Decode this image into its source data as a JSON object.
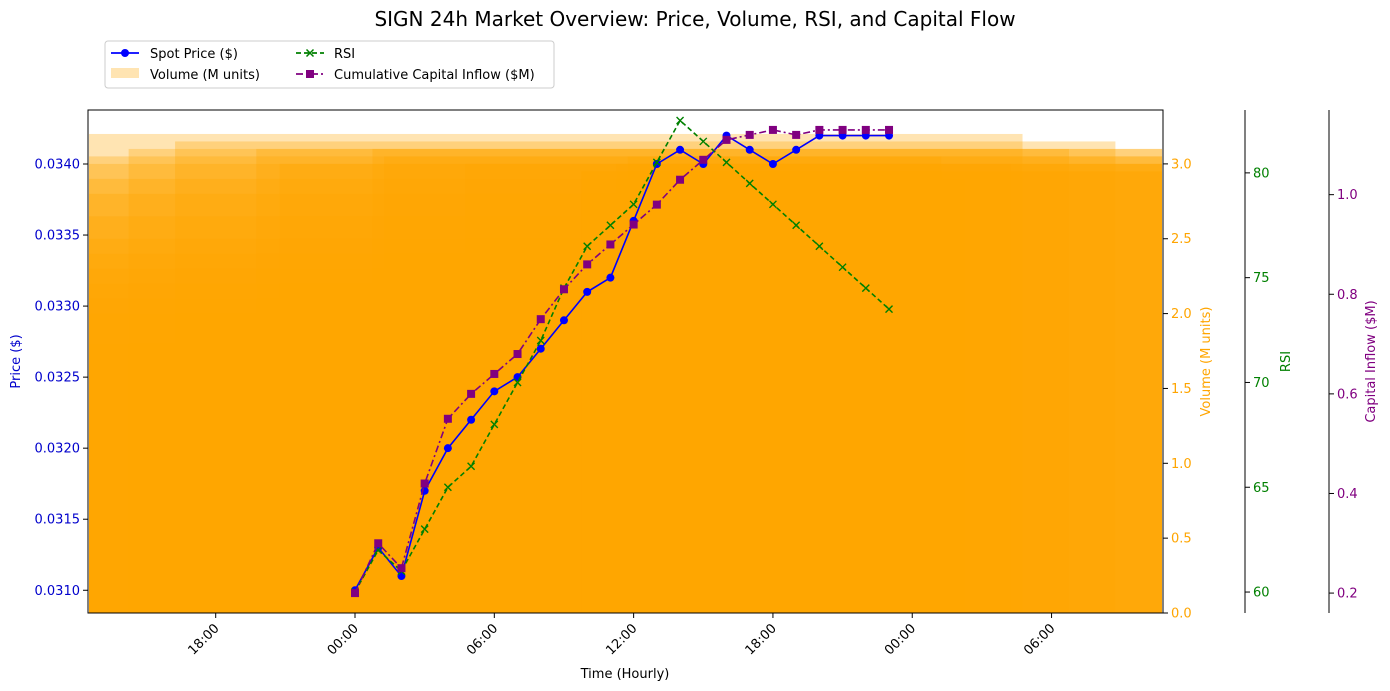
{
  "chart_data": {
    "type": "line",
    "title": "SIGN 24h Market Overview: Price, Volume, RSI, and Capital Flow",
    "xlabel": "Time (Hourly)",
    "x_tick_labels": [
      "18:00",
      "00:00",
      "06:00",
      "12:00",
      "18:00",
      "00:00",
      "06:00"
    ],
    "x_tick_hours": [
      -6,
      0,
      6,
      12,
      18,
      24,
      30
    ],
    "x_range_hours": [
      -11.5,
      34.8
    ],
    "hours": [
      0,
      1,
      2,
      3,
      4,
      5,
      6,
      7,
      8,
      9,
      10,
      11,
      12,
      13,
      14,
      15,
      16,
      17,
      18,
      19,
      20,
      21,
      22,
      23
    ],
    "axes": {
      "price": {
        "label": "Price ($)",
        "color": "#0000cc",
        "ylim": [
          0.03084,
          0.03438
        ],
        "ticks": [
          "0.0310",
          "0.0315",
          "0.0320",
          "0.0325",
          "0.0330",
          "0.0335",
          "0.0340"
        ]
      },
      "volume": {
        "label": "Volume (M units)",
        "color": "#FFA500",
        "ylim": [
          0,
          3.36
        ],
        "ticks": [
          "0.0",
          "0.5",
          "1.0",
          "1.5",
          "2.0",
          "2.5",
          "3.0"
        ]
      },
      "rsi": {
        "label": "RSI",
        "color": "#008000",
        "ylim": [
          59,
          83
        ],
        "ticks": [
          "60",
          "65",
          "70",
          "75",
          "80"
        ]
      },
      "inflow": {
        "label": "Capital Inflow ($M)",
        "color": "#800080",
        "ylim": [
          0.16,
          1.17
        ],
        "ticks": [
          "0.2",
          "0.4",
          "0.6",
          "0.8",
          "1.0"
        ]
      }
    },
    "series": [
      {
        "name": "Spot Price ($)",
        "axis": "price",
        "style": "solid-circle",
        "color": "#0000ff",
        "values": [
          0.031,
          0.0313,
          0.0311,
          0.0317,
          0.032,
          0.0322,
          0.0324,
          0.0325,
          0.0327,
          0.0329,
          0.0331,
          0.0332,
          0.0336,
          0.034,
          0.0341,
          0.034,
          0.0342,
          0.0341,
          0.034,
          0.0341,
          0.0342,
          0.0342,
          0.0342,
          0.0342
        ]
      },
      {
        "name": "Volume (M units)",
        "axis": "volume",
        "style": "bar",
        "color": "#FFA500",
        "values": [
          2.0,
          1.8,
          2.1,
          2.2,
          2.3,
          2.4,
          2.5,
          2.65,
          2.8,
          2.9,
          3.0,
          3.05,
          3.1,
          3.2,
          3.1,
          3.15,
          3.0,
          3.1,
          3.05,
          3.0,
          2.95,
          3.05,
          3.0,
          2.95
        ],
        "offsets_hours": [
          -8.5,
          -6.5,
          -3.5,
          -7.0,
          -5.0,
          -2.5,
          -4.0,
          -1.0,
          -5.5,
          -3.0,
          -2.0,
          -6.0,
          -1.5,
          -4.5,
          2.0,
          -2.5,
          1.0,
          4.0,
          3.5,
          6.0,
          10.0,
          11.0,
          9.5,
          7.0
        ]
      },
      {
        "name": "RSI",
        "axis": "rsi",
        "style": "dashed-x",
        "color": "#008000",
        "values": [
          60.0,
          62.0,
          61.0,
          63.0,
          65.0,
          66.0,
          68.0,
          70.0,
          72.0,
          74.5,
          76.5,
          77.5,
          78.5,
          80.5,
          82.5,
          81.5,
          80.5,
          79.5,
          78.5,
          77.5,
          76.5,
          75.5,
          74.5,
          73.5
        ]
      },
      {
        "name": "Cumulative Capital Inflow ($M)",
        "axis": "inflow",
        "style": "dashdot-square",
        "color": "#800080",
        "values": [
          0.2,
          0.3,
          0.25,
          0.42,
          0.55,
          0.6,
          0.64,
          0.68,
          0.75,
          0.81,
          0.86,
          0.9,
          0.94,
          0.98,
          1.03,
          1.07,
          1.11,
          1.12,
          1.13,
          1.12,
          1.13,
          1.13,
          1.13,
          1.13
        ]
      }
    ],
    "legend": {
      "placement": "top-left outside",
      "entries": [
        "Spot Price ($)",
        "Volume (M units)",
        "RSI",
        "Cumulative Capital Inflow ($M)"
      ]
    }
  }
}
